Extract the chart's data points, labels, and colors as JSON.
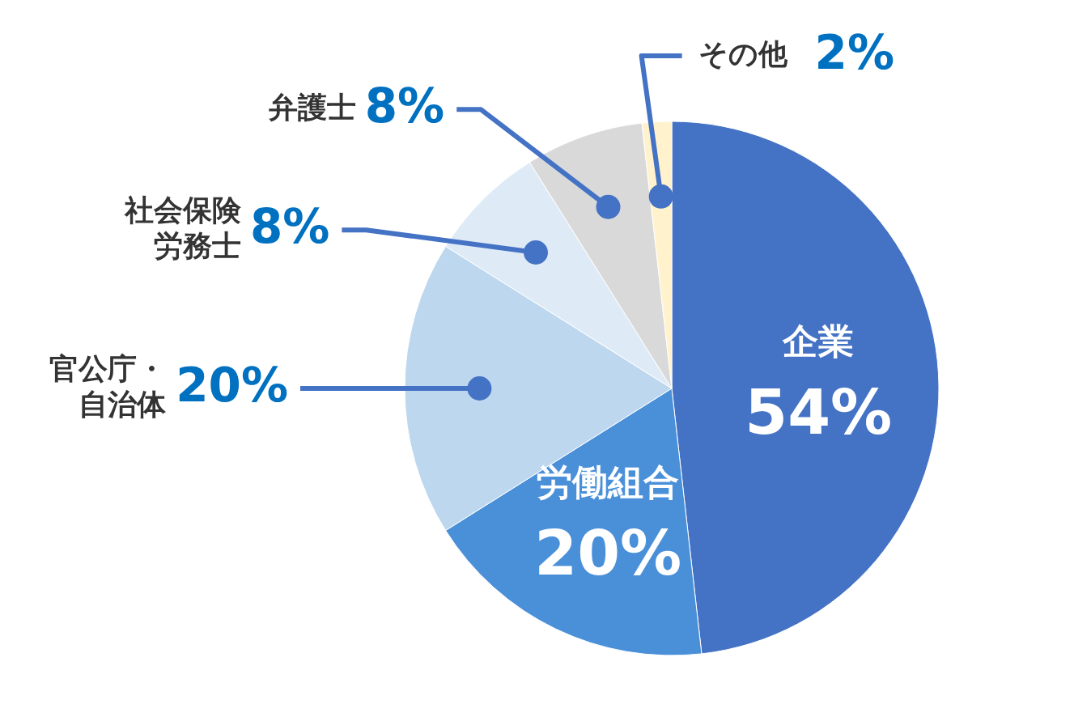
{
  "chart_data": {
    "type": "pie",
    "categories": [
      "企業",
      "労働組合",
      "官公庁・自治体",
      "社会保険労務士",
      "弁護士",
      "その他"
    ],
    "values": [
      54,
      20,
      20,
      8,
      8,
      2
    ],
    "value_labels": [
      "54%",
      "20%",
      "20%",
      "8%",
      "8%",
      "2%"
    ],
    "colors": [
      "#4472c4",
      "#4a90d9",
      "#bdd7ee",
      "#deebf7",
      "#d9d9d9",
      "#fff2cc"
    ]
  }
}
